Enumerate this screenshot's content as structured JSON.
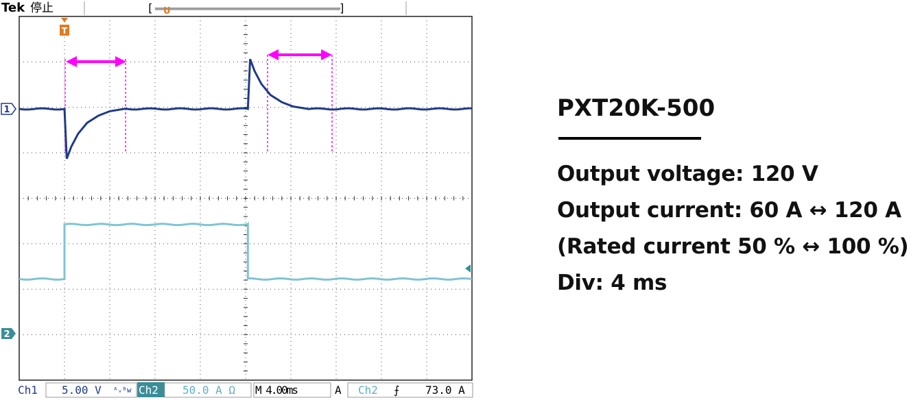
{
  "status_bar": {
    "brand": "Tek",
    "run_state": "停止",
    "trigger_marker_label": "T"
  },
  "readouts": {
    "ch1_label": "Ch1",
    "ch1_scale": "5.00 V",
    "ch1_bw_symbol": "ᴬᵥᴮw",
    "ch2_label": "Ch2",
    "ch2_scale": "50.0 A Ω",
    "timebase": "M 4.00ms",
    "trigger_mode": "A",
    "trigger_source": "Ch2",
    "trigger_slope_symbol": "⨍",
    "trigger_level": "73.0 A"
  },
  "channel_markers": {
    "ch1": "1",
    "ch2": "2"
  },
  "colors": {
    "ch1": "#1f3a8a",
    "ch2": "#7fc4d2",
    "cursor": "#ff00ff",
    "trigger_marker": "#e07b20",
    "ch2_badge": "#3a8e98",
    "grid": "#333333"
  },
  "chart_data": {
    "type": "line",
    "title": "",
    "xlabel": "",
    "ylabel": "",
    "x_divisions": 10,
    "y_divisions": 8,
    "time_per_div_ms": 4,
    "grid": true,
    "series": [
      {
        "name": "Ch1",
        "unit": "V",
        "volts_per_div": 5,
        "points_ms": [
          [
            0,
            0
          ],
          [
            4.0,
            0
          ],
          [
            4.2,
            -5.5
          ],
          [
            4.6,
            -4.2
          ],
          [
            5.2,
            -2.8
          ],
          [
            6.0,
            -1.6
          ],
          [
            7.0,
            -0.8
          ],
          [
            8.0,
            -0.3
          ],
          [
            9.4,
            0
          ],
          [
            20.2,
            0
          ],
          [
            20.4,
            5.5
          ],
          [
            20.8,
            4.2
          ],
          [
            21.4,
            2.8
          ],
          [
            22.2,
            1.6
          ],
          [
            23.2,
            0.8
          ],
          [
            24.2,
            0.3
          ],
          [
            25.6,
            0
          ],
          [
            40,
            0
          ]
        ]
      },
      {
        "name": "Ch2",
        "unit": "A",
        "amps_per_div": 50,
        "points_ms": [
          [
            0,
            60
          ],
          [
            4.0,
            60
          ],
          [
            4.0,
            120
          ],
          [
            20.2,
            120
          ],
          [
            20.2,
            60
          ],
          [
            40,
            60
          ]
        ]
      }
    ]
  },
  "info_panel": {
    "model": "PXT20K-500",
    "lines": [
      "Output voltage: 120 V",
      "Output current: 60 A ↔ 120 A",
      "(Rated current 50 % ↔ 100 %)",
      "Div: 4 ms"
    ]
  }
}
